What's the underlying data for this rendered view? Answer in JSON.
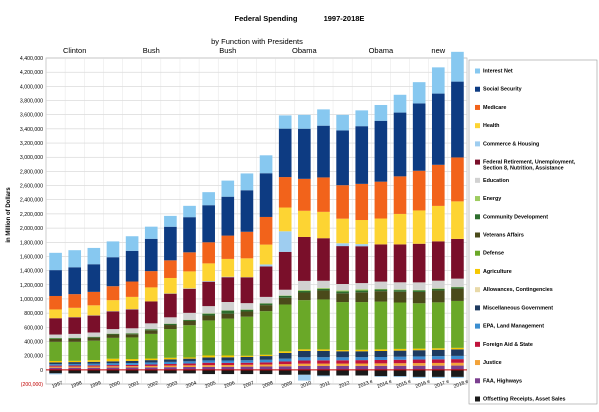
{
  "chart_data": {
    "type": "bar",
    "stacked": true,
    "title": "Federal Spending",
    "title_years": "1997-2018E",
    "subtitle": "by Function with Presidents",
    "ylabel": "in Million of Dollars",
    "ylim": [
      -200000,
      4400000
    ],
    "y_tick_step": 200000,
    "grid": true,
    "legend_position": "right",
    "categories": [
      "1997",
      "1998",
      "1999",
      "2000",
      "2001",
      "2002",
      "2003",
      "2004",
      "2005",
      "2006",
      "2007",
      "2008",
      "2009",
      "2010",
      "2011",
      "2012",
      "2013 e",
      "2014 e",
      "2015 e",
      "2016 e",
      "2017 e",
      "2018 e"
    ],
    "presidents": [
      {
        "name": "Clinton",
        "at": "1998"
      },
      {
        "name": "Bush",
        "at": "2002"
      },
      {
        "name": "Bush",
        "at": "2006"
      },
      {
        "name": "Obama",
        "at": "2010"
      },
      {
        "name": "Obama",
        "at": "2014 e"
      },
      {
        "name": "new",
        "at": "2017 e"
      }
    ],
    "series": [
      {
        "name": "Offsetting Receipts, Asset Sales",
        "color": "#1a1a1a",
        "values": [
          -50000,
          -50000,
          -50000,
          -50000,
          -50000,
          -50000,
          -50000,
          -50000,
          -60000,
          -60000,
          -60000,
          -60000,
          -70000,
          -70000,
          -80000,
          -80000,
          -80000,
          -90000,
          -90000,
          -100000,
          -100000,
          -100000
        ]
      },
      {
        "name": "FAA, Highways",
        "color": "#7b3f8f",
        "values": [
          30000,
          30000,
          30000,
          32000,
          33000,
          35000,
          38000,
          40000,
          42000,
          43000,
          45000,
          47000,
          50000,
          55000,
          55000,
          55000,
          55000,
          56000,
          57000,
          58000,
          59000,
          60000
        ]
      },
      {
        "name": "Justice",
        "color": "#f3a33a",
        "values": [
          15000,
          16000,
          17000,
          18000,
          19000,
          20000,
          22000,
          23000,
          24000,
          25000,
          26000,
          28000,
          30000,
          32000,
          33000,
          33000,
          34000,
          35000,
          36000,
          37000,
          38000,
          39000
        ]
      },
      {
        "name": "Foreign Aid & State",
        "color": "#c0143c",
        "values": [
          15000,
          15000,
          16000,
          17000,
          17000,
          20000,
          22000,
          26000,
          34000,
          30000,
          29000,
          30000,
          38000,
          45000,
          46000,
          47000,
          48000,
          48000,
          49000,
          50000,
          51000,
          52000
        ]
      },
      {
        "name": "EPA, Land Management",
        "color": "#3b8ed0",
        "values": [
          20000,
          22000,
          23000,
          25000,
          27000,
          29000,
          30000,
          31000,
          33000,
          34000,
          35000,
          37000,
          40000,
          45000,
          44000,
          42000,
          41000,
          42000,
          43000,
          44000,
          45000,
          46000
        ]
      },
      {
        "name": "Miscellaneous Government",
        "color": "#1e3a5f",
        "values": [
          25000,
          26000,
          27000,
          28000,
          30000,
          33000,
          36000,
          38000,
          42000,
          45000,
          47000,
          52000,
          80000,
          90000,
          90000,
          85000,
          84000,
          85000,
          86000,
          88000,
          90000,
          92000
        ]
      },
      {
        "name": "Allowances, Contingencies",
        "color": "#e8d9a8",
        "values": [
          0,
          0,
          0,
          0,
          0,
          0,
          0,
          0,
          0,
          0,
          0,
          0,
          0,
          0,
          0,
          0,
          0,
          0,
          0,
          0,
          0,
          0
        ]
      },
      {
        "name": "Agriculture",
        "color": "#f6c800",
        "values": [
          20000,
          18000,
          23000,
          37000,
          26000,
          22000,
          22000,
          16000,
          27000,
          25000,
          17000,
          18000,
          23000,
          22000,
          20000,
          17000,
          22000,
          23000,
          24000,
          22000,
          21000,
          21000
        ]
      },
      {
        "name": "Defense",
        "color": "#6aa828",
        "values": [
          270000,
          268000,
          275000,
          294000,
          305000,
          348000,
          405000,
          455000,
          495000,
          521000,
          551000,
          616000,
          661000,
          694000,
          705000,
          677000,
          672000,
          674000,
          655000,
          640000,
          648000,
          662000
        ]
      },
      {
        "name": "Veterans Affairs",
        "color": "#4a4a1a",
        "values": [
          40000,
          42000,
          43000,
          47000,
          45000,
          51000,
          57000,
          60000,
          70000,
          70000,
          73000,
          85000,
          95000,
          108000,
          127000,
          124000,
          138000,
          147000,
          152000,
          160000,
          168000,
          174000
        ]
      },
      {
        "name": "Community Development",
        "color": "#2e6e2e",
        "values": [
          12000,
          14000,
          12000,
          11000,
          13000,
          15000,
          18000,
          16000,
          27000,
          45000,
          26000,
          25000,
          28000,
          24000,
          24000,
          26000,
          25000,
          24000,
          23000,
          22000,
          21000,
          20000
        ]
      },
      {
        "name": "Energy",
        "color": "#9ecc60",
        "values": [
          1000,
          1000,
          1000,
          1000,
          1000,
          1000,
          1000,
          1000,
          1000,
          1000,
          1000,
          1000,
          5000,
          12000,
          12000,
          15000,
          18000,
          10000,
          8000,
          7000,
          7000,
          6000
        ]
      },
      {
        "name": "Education",
        "color": "#d1d1d1",
        "values": [
          50000,
          55000,
          60000,
          65000,
          70000,
          82000,
          90000,
          98000,
          104000,
          118000,
          91000,
          90000,
          80000,
          128000,
          101000,
          90000,
          87000,
          101000,
          102000,
          106000,
          110000,
          115000
        ]
      },
      {
        "name": "Federal Retirement, Unemployment, Section 8, Nutrition, Assistance",
        "color": "#7a0f2a",
        "values": [
          230000,
          235000,
          240000,
          250000,
          265000,
          310000,
          335000,
          340000,
          345000,
          350000,
          365000,
          430000,
          535000,
          620000,
          600000,
          535000,
          520000,
          525000,
          535000,
          545000,
          555000,
          560000
        ]
      },
      {
        "name": "Commerce & Housing",
        "color": "#9ecdf0",
        "values": [
          -14000,
          1000,
          2000,
          3000,
          5000,
          0,
          1000,
          5000,
          8000,
          6000,
          1000,
          28000,
          290000,
          -82000,
          -12000,
          40000,
          30000,
          -10000,
          -12000,
          -14000,
          -15000,
          -16000
        ]
      },
      {
        "name": "Health",
        "color": "#fdd433",
        "values": [
          124000,
          132000,
          141000,
          155000,
          173000,
          197000,
          219000,
          240000,
          250000,
          252000,
          266000,
          280000,
          335000,
          369000,
          372000,
          347000,
          340000,
          365000,
          430000,
          470000,
          500000,
          530000
        ]
      },
      {
        "name": "Medicare",
        "color": "#f2631b",
        "values": [
          190000,
          193000,
          190000,
          197000,
          217000,
          230000,
          249000,
          269000,
          298000,
          329000,
          375000,
          390000,
          430000,
          451000,
          486000,
          472000,
          510000,
          520000,
          530000,
          560000,
          580000,
          620000
        ]
      },
      {
        "name": "Social Security",
        "color": "#0d3b82",
        "values": [
          365000,
          379000,
          390000,
          409000,
          433000,
          456000,
          474000,
          496000,
          523000,
          549000,
          586000,
          617000,
          683000,
          707000,
          730000,
          773000,
          814000,
          859000,
          900000,
          950000,
          1005000,
          1070000
        ]
      },
      {
        "name": "Interest Net",
        "color": "#87c8f0",
        "values": [
          244000,
          241000,
          230000,
          223000,
          206000,
          171000,
          153000,
          160000,
          184000,
          227000,
          237000,
          253000,
          187000,
          196000,
          230000,
          220000,
          223000,
          223000,
          251000,
          300000,
          370000,
          420000
        ]
      }
    ]
  }
}
